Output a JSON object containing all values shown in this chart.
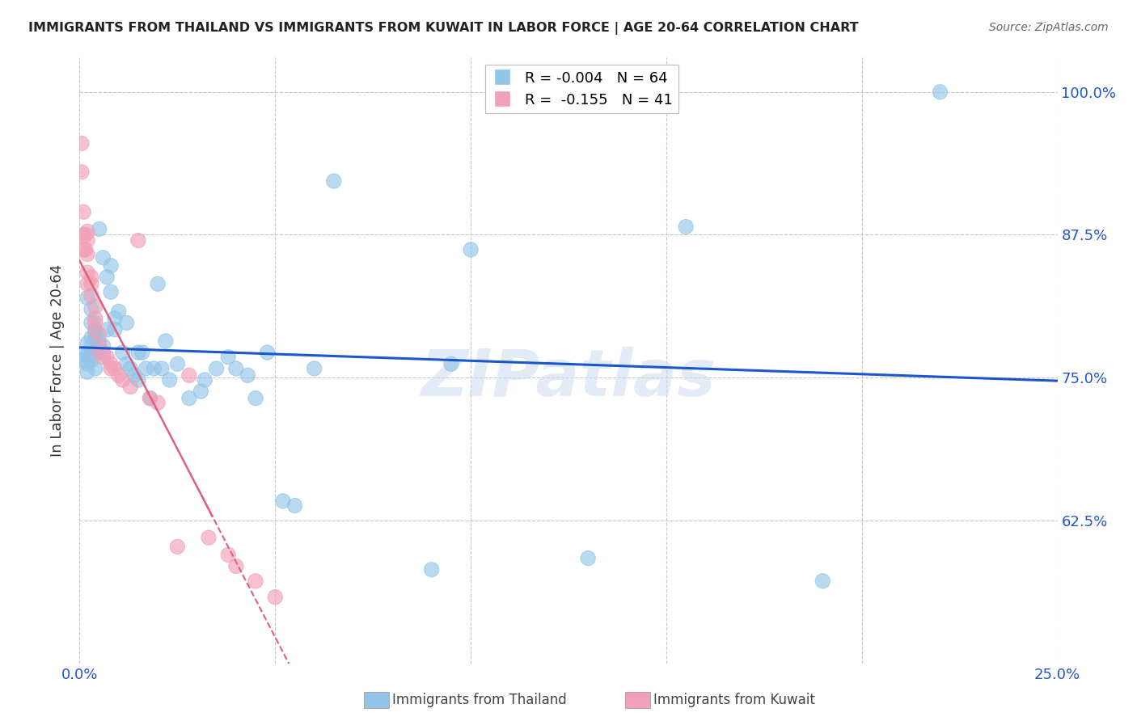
{
  "title": "IMMIGRANTS FROM THAILAND VS IMMIGRANTS FROM KUWAIT IN LABOR FORCE | AGE 20-64 CORRELATION CHART",
  "source": "Source: ZipAtlas.com",
  "ylabel": "In Labor Force | Age 20-64",
  "r_thailand": -0.004,
  "n_thailand": 64,
  "r_kuwait": -0.155,
  "n_kuwait": 41,
  "xlim": [
    0.0,
    0.25
  ],
  "ylim": [
    0.5,
    1.03
  ],
  "yticks": [
    0.625,
    0.75,
    0.875,
    1.0
  ],
  "ytick_labels": [
    "62.5%",
    "75.0%",
    "87.5%",
    "100.0%"
  ],
  "xticks": [
    0.0,
    0.05,
    0.1,
    0.15,
    0.2,
    0.25
  ],
  "xtick_labels": [
    "0.0%",
    "",
    "",
    "",
    "",
    "25.0%"
  ],
  "color_thailand": "#92c5e8",
  "color_kuwait": "#f0a0b8",
  "line_color_thailand": "#1a56cc",
  "line_color_kuwait": "#e06080",
  "background_color": "#ffffff",
  "grid_color": "#c8c8c8",
  "watermark": "ZIPatlas",
  "thailand_x": [
    0.001,
    0.001,
    0.002,
    0.002,
    0.002,
    0.002,
    0.002,
    0.003,
    0.003,
    0.003,
    0.003,
    0.003,
    0.003,
    0.004,
    0.004,
    0.004,
    0.005,
    0.005,
    0.005,
    0.006,
    0.006,
    0.007,
    0.007,
    0.008,
    0.008,
    0.009,
    0.009,
    0.01,
    0.011,
    0.012,
    0.012,
    0.013,
    0.014,
    0.015,
    0.015,
    0.016,
    0.017,
    0.018,
    0.019,
    0.02,
    0.021,
    0.022,
    0.023,
    0.025,
    0.028,
    0.031,
    0.032,
    0.035,
    0.038,
    0.04,
    0.043,
    0.045,
    0.048,
    0.052,
    0.055,
    0.06,
    0.065,
    0.09,
    0.095,
    0.1,
    0.13,
    0.155,
    0.19,
    0.22
  ],
  "thailand_y": [
    0.77,
    0.765,
    0.82,
    0.78,
    0.77,
    0.762,
    0.755,
    0.81,
    0.798,
    0.785,
    0.778,
    0.77,
    0.765,
    0.79,
    0.785,
    0.758,
    0.88,
    0.782,
    0.772,
    0.855,
    0.778,
    0.838,
    0.792,
    0.848,
    0.825,
    0.802,
    0.792,
    0.808,
    0.772,
    0.798,
    0.762,
    0.758,
    0.752,
    0.748,
    0.772,
    0.772,
    0.758,
    0.732,
    0.758,
    0.832,
    0.758,
    0.782,
    0.748,
    0.762,
    0.732,
    0.738,
    0.748,
    0.758,
    0.768,
    0.758,
    0.752,
    0.732,
    0.772,
    0.642,
    0.638,
    0.758,
    0.922,
    0.582,
    0.762,
    0.862,
    0.592,
    0.882,
    0.572,
    1.0
  ],
  "kuwait_x": [
    0.0005,
    0.0005,
    0.001,
    0.001,
    0.001,
    0.0015,
    0.0015,
    0.002,
    0.002,
    0.002,
    0.002,
    0.002,
    0.003,
    0.003,
    0.003,
    0.004,
    0.004,
    0.004,
    0.004,
    0.005,
    0.005,
    0.005,
    0.006,
    0.006,
    0.007,
    0.008,
    0.008,
    0.009,
    0.01,
    0.011,
    0.013,
    0.015,
    0.018,
    0.02,
    0.025,
    0.028,
    0.033,
    0.038,
    0.04,
    0.045,
    0.05
  ],
  "kuwait_y": [
    0.955,
    0.93,
    0.895,
    0.875,
    0.862,
    0.875,
    0.862,
    0.878,
    0.87,
    0.858,
    0.842,
    0.832,
    0.838,
    0.832,
    0.822,
    0.812,
    0.802,
    0.798,
    0.792,
    0.788,
    0.778,
    0.772,
    0.772,
    0.768,
    0.768,
    0.762,
    0.758,
    0.758,
    0.752,
    0.748,
    0.742,
    0.87,
    0.732,
    0.728,
    0.602,
    0.752,
    0.61,
    0.595,
    0.585,
    0.572,
    0.558
  ]
}
